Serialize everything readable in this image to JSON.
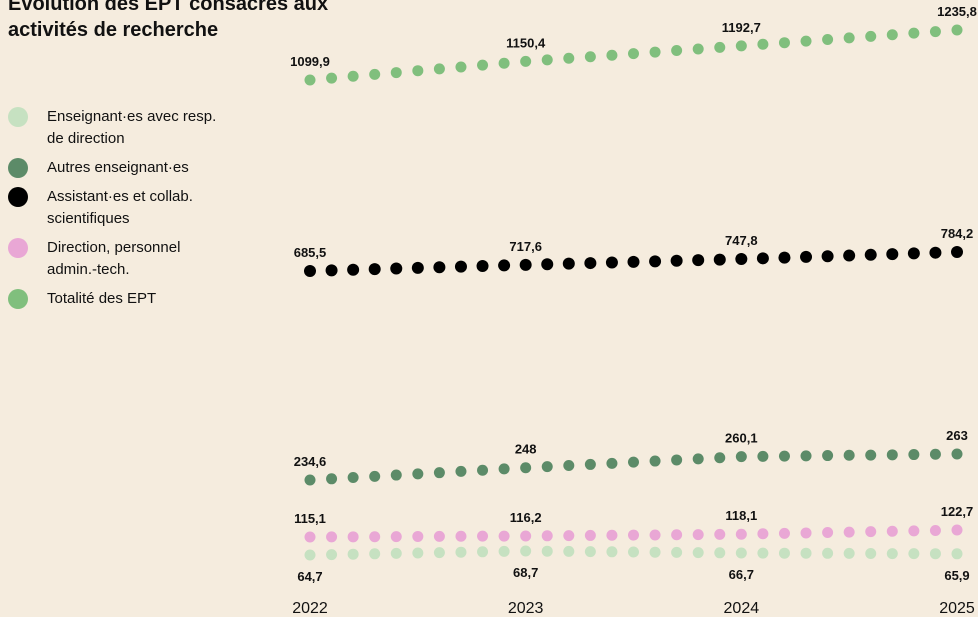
{
  "chart_data": {
    "type": "dot-line",
    "title": "Évolution des EPT consacrés aux activités de recherche",
    "x": [
      2022,
      2022.1,
      2022.2,
      2022.3,
      2022.4,
      2022.5,
      2022.6,
      2022.7,
      2022.8,
      2022.9,
      2023,
      2023.1,
      2023.2,
      2023.3,
      2023.4,
      2023.5,
      2023.6,
      2023.7,
      2023.8,
      2023.9,
      2024,
      2024.1,
      2024.2,
      2024.3,
      2024.4,
      2024.5,
      2024.6,
      2024.7,
      2024.8,
      2024.9,
      2025
    ],
    "xlim": [
      2022,
      2025
    ],
    "xticks": [
      2022,
      2023,
      2024,
      2025
    ],
    "series": [
      {
        "name": "Enseignant·es avec resp. de direction",
        "color": "#c6e1c1",
        "values": [
          64.7,
          65.1,
          65.5,
          65.9,
          66.3,
          66.7,
          67.1,
          67.5,
          67.9,
          68.3,
          68.7,
          68.5,
          68.3,
          68.1,
          67.9,
          67.7,
          67.5,
          67.3,
          67.1,
          66.9,
          66.7,
          66.6,
          66.5,
          66.5,
          66.4,
          66.3,
          66.2,
          66.1,
          66.1,
          66.0,
          65.9
        ],
        "value_labels": [
          "64,7",
          null,
          null,
          null,
          null,
          null,
          null,
          null,
          null,
          null,
          "68,7",
          null,
          null,
          null,
          null,
          null,
          null,
          null,
          null,
          null,
          "66,7",
          null,
          null,
          null,
          null,
          null,
          null,
          null,
          null,
          null,
          "65,9"
        ]
      },
      {
        "name": "Autres enseignant·es",
        "color": "#5c8b68",
        "values": [
          234.6,
          235.9,
          237.3,
          238.6,
          240.0,
          241.3,
          242.6,
          244.0,
          245.3,
          246.7,
          248,
          249.2,
          250.4,
          251.6,
          252.8,
          254.1,
          255.3,
          256.5,
          257.7,
          258.9,
          260.1,
          260.4,
          260.7,
          261.0,
          261.3,
          261.6,
          261.8,
          262.1,
          262.4,
          262.7,
          263
        ],
        "value_labels": [
          "234,6",
          null,
          null,
          null,
          null,
          null,
          null,
          null,
          null,
          null,
          "248",
          null,
          null,
          null,
          null,
          null,
          null,
          null,
          null,
          null,
          "260,1",
          null,
          null,
          null,
          null,
          null,
          null,
          null,
          null,
          null,
          "263"
        ]
      },
      {
        "name": "Assistant·es et collab. scientifiques",
        "color": "#000000",
        "values": [
          685.5,
          688.7,
          691.9,
          695.1,
          698.3,
          701.6,
          704.8,
          708.0,
          711.2,
          714.4,
          717.6,
          720.6,
          723.6,
          726.7,
          729.7,
          732.7,
          735.7,
          738.7,
          741.8,
          744.8,
          747.8,
          751.4,
          755.1,
          758.7,
          762.4,
          766.0,
          769.6,
          773.3,
          776.9,
          780.6,
          784.2
        ],
        "value_labels": [
          "685,5",
          null,
          null,
          null,
          null,
          null,
          null,
          null,
          null,
          null,
          "717,6",
          null,
          null,
          null,
          null,
          null,
          null,
          null,
          null,
          null,
          "747,8",
          null,
          null,
          null,
          null,
          null,
          null,
          null,
          null,
          null,
          "784,2"
        ]
      },
      {
        "name": "Direction, personnel admin.-tech.",
        "color": "#e9a7d5",
        "values": [
          115.1,
          115.2,
          115.3,
          115.4,
          115.5,
          115.7,
          115.8,
          115.9,
          116.0,
          116.1,
          116.2,
          116.4,
          116.6,
          116.8,
          117.0,
          117.2,
          117.3,
          117.5,
          117.7,
          117.9,
          118.1,
          118.6,
          119.0,
          119.5,
          120.0,
          120.4,
          120.9,
          121.3,
          121.8,
          122.2,
          122.7
        ],
        "value_labels": [
          "115,1",
          null,
          null,
          null,
          null,
          null,
          null,
          null,
          null,
          null,
          "116,2",
          null,
          null,
          null,
          null,
          null,
          null,
          null,
          null,
          null,
          "118,1",
          null,
          null,
          null,
          null,
          null,
          null,
          null,
          null,
          null,
          "122,7"
        ]
      },
      {
        "name": "Totalité des EPT",
        "color": "#80bf7d",
        "values": [
          1099.9,
          1104.9,
          1110.0,
          1115.1,
          1120.1,
          1125.2,
          1130.2,
          1135.3,
          1140.3,
          1145.4,
          1150.4,
          1154.6,
          1158.9,
          1163.1,
          1167.3,
          1171.6,
          1175.8,
          1180.0,
          1184.2,
          1188.5,
          1192.7,
          1197.0,
          1201.3,
          1205.6,
          1209.9,
          1214.3,
          1218.6,
          1222.9,
          1227.2,
          1231.5,
          1235.8
        ],
        "value_labels": [
          "1099,9",
          null,
          null,
          null,
          null,
          null,
          null,
          null,
          null,
          null,
          "1150,4",
          null,
          null,
          null,
          null,
          null,
          null,
          null,
          null,
          null,
          "1192,7",
          null,
          null,
          null,
          null,
          null,
          null,
          null,
          null,
          null,
          "1235,8"
        ]
      }
    ]
  }
}
